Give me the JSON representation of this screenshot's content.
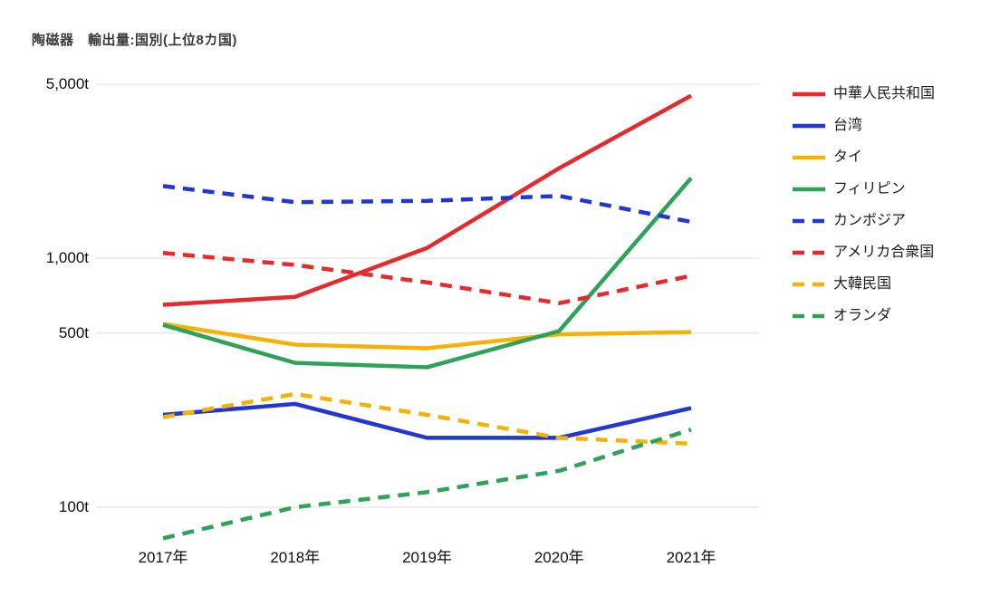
{
  "title": "陶磁器　輸出量:国別(上位8カ国)",
  "chart_data": {
    "type": "line",
    "title": "陶磁器　輸出量:国別(上位8カ国)",
    "unit": "t",
    "x_categories": [
      "2017年",
      "2018年",
      "2019年",
      "2020年",
      "2021年"
    ],
    "y_axis": {
      "scale": "log",
      "ticks": [
        {
          "label": "5,000t",
          "value": 5000
        },
        {
          "label": "1,000t",
          "value": 1000
        },
        {
          "label": "500t",
          "value": 500
        },
        {
          "label": "100t",
          "value": 100
        }
      ]
    },
    "grid": "horizontal-only",
    "legend_position": "right",
    "series": [
      {
        "name": "中華人民共和国",
        "color": "#e7282c",
        "style": "solid",
        "values": [
          650,
          700,
          1100,
          2300,
          4500
        ]
      },
      {
        "name": "台湾",
        "color": "#2136d4",
        "style": "solid",
        "values": [
          235,
          260,
          190,
          190,
          250
        ]
      },
      {
        "name": "タイ",
        "color": "#f5b105",
        "style": "solid",
        "values": [
          545,
          450,
          435,
          495,
          505
        ]
      },
      {
        "name": "フィリピン",
        "color": "#2ea258",
        "style": "solid",
        "values": [
          540,
          380,
          365,
          510,
          2100
        ]
      },
      {
        "name": "カンボジア",
        "color": "#2136d4",
        "style": "dashed",
        "values": [
          1950,
          1680,
          1700,
          1780,
          1400
        ]
      },
      {
        "name": "アメリカ合衆国",
        "color": "#e7282c",
        "style": "dashed",
        "values": [
          1050,
          940,
          800,
          660,
          850
        ]
      },
      {
        "name": "大韓民国",
        "color": "#f5b105",
        "style": "dashed",
        "values": [
          230,
          285,
          235,
          190,
          180
        ]
      },
      {
        "name": "オランダ",
        "color": "#2ea258",
        "style": "dashed",
        "values": [
          75,
          100,
          115,
          140,
          205
        ]
      }
    ],
    "colors": {
      "red": "#e7282c",
      "blue": "#2136d4",
      "yellow": "#f5b105",
      "green": "#2ea258",
      "gridline": "#dcdcdc",
      "title_text": "#3a3a3a",
      "axis_text": "#0f0f0f"
    }
  }
}
